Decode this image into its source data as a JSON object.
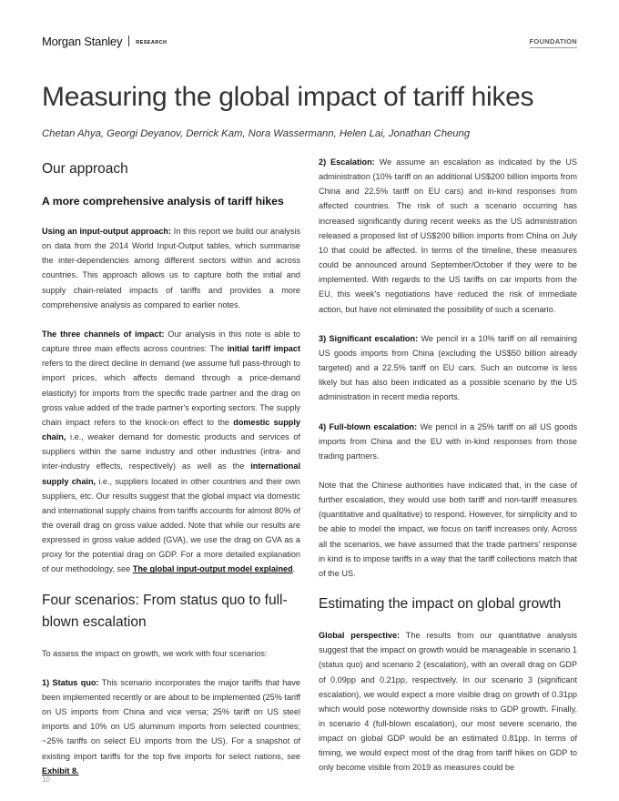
{
  "header": {
    "brand": "Morgan Stanley",
    "research": "RESEARCH",
    "section": "FOUNDATION"
  },
  "title": "Measuring the global impact of tariff hikes",
  "authors": "Chetan Ahya, Georgi Deyanov, Derrick Kam, Nora Wassermann, Helen Lai, Jonathan Cheung",
  "left": {
    "h_approach": "Our approach",
    "h_comprehensive": "A more comprehensive analysis of tariff hikes",
    "p1_lead": "Using an input-output approach:",
    "p1_text": " In this report we build our analysis on data from the 2014 World Input-Output tables, which summarise the inter-dependencies among different sectors within and across countries. This approach allows us to capture both the initial and supply chain-related impacts of tariffs and provides a more comprehensive analysis as compared to earlier notes.",
    "p2_lead": "The three channels of impact:",
    "p2_a": " Our analysis in this note is able to capture three main effects across countries: The ",
    "p2_b_bold": "initial tariff impact",
    "p2_c": " refers to the direct decline in demand (we assume full pass-through to import prices, which affects demand through a price-demand elasticity) for imports from the specific trade partner and the drag on gross value added of the trade partner's exporting sectors. The supply chain impact refers to the knock-on effect to the ",
    "p2_d_bold": "domestic supply chain,",
    "p2_e": " i.e., weaker demand for domestic products and services of suppliers within the same industry and other industries (intra- and inter-industry effects, respectively) as well as the ",
    "p2_f_bold": "international supply chain,",
    "p2_g": " i.e., suppliers located in other countries and their own suppliers, etc. Our results suggest that the global impact via domestic and international supply chains from tariffs accounts for almost 80% of the overall drag on gross value added. Note that while our results are expressed in gross value added (GVA), we use the drag on GVA as a proxy for the potential drag on GDP. For a more detailed explanation of our methodology, see ",
    "p2_link": "The global input-output model explained",
    "p2_end": ".",
    "h_scenarios": "Four scenarios: From status quo to full-blown escalation",
    "p3": "To assess the impact on growth, we work with four scenarios:",
    "p4_lead": "1) Status quo:",
    "p4_text": " This scenario incorporates the major tariffs that have been implemented recently or are about to be implemented (25% tariff on US imports from China and vice versa; 25% tariff on US steel imports and 10% on US aluminum imports from selected countries; ~25% tariffs on select EU imports from the US). For a snapshot of existing import tariffs for the top five imports for select nations, see ",
    "p4_link": "Exhibit 8."
  },
  "right": {
    "p5_lead": "2) Escalation:",
    "p5_text": " We assume an escalation as indicated by the US administration (10% tariff on an additional US$200 billion imports from China and 22.5% tariff on EU cars) and in-kind responses from affected countries. The risk of such a scenario occurring has increased significantly during recent weeks as the US administration released a proposed list of US$200 billion imports from China on July 10 that could be affected. In terms of the timeline, these measures could be announced around September/October if they were to be implemented. With regards to the US tariffs on car imports from the EU, this week's negotiations have reduced the risk of immediate action, but have not eliminated the possibility of such a scenario.",
    "p6_lead": "3) Significant escalation:",
    "p6_text": " We pencil in a 10% tariff on all remaining US goods imports from China (excluding the US$50 billion already targeted) and a 22.5% tariff on EU cars. Such an outcome is less likely but has also been indicated as a possible scenario by the US administration in recent media reports.",
    "p7_lead": "4) Full-blown escalation:",
    "p7_text": " We pencil in a 25% tariff on all US goods imports from China and the EU with in-kind responses from those trading partners.",
    "p8": "Note that the Chinese authorities have indicated that, in the case of further escalation, they would use both tariff and non-tariff measures (quantitative and qualitative) to respond. However, for simplicity and to be able to model the impact, we focus on tariff increases only. Across all the scenarios, we have assumed that the trade partners' response in kind is to impose tariffs in a way that the tariff collections match that of the US.",
    "h_growth": "Estimating the impact on global growth",
    "p9_lead": "Global perspective:",
    "p9_text": " The results from our quantitative analysis suggest that the impact on growth would be manageable in scenario 1 (status quo) and scenario 2 (escalation), with an overall drag on GDP of 0.09pp and 0.21pp, respectively. In our scenario 3 (significant escalation), we would expect a more visible drag on growth of 0.31pp which would pose noteworthy downside risks to GDP growth. Finally, in scenario 4 (full-blown escalation), our most severe scenario, the impact on global GDP would be an estimated 0.81pp. In terms of timing, we would expect most of the drag from tariff hikes on GDP to only become visible from 2019 as measures could be"
  },
  "page_number": "10"
}
